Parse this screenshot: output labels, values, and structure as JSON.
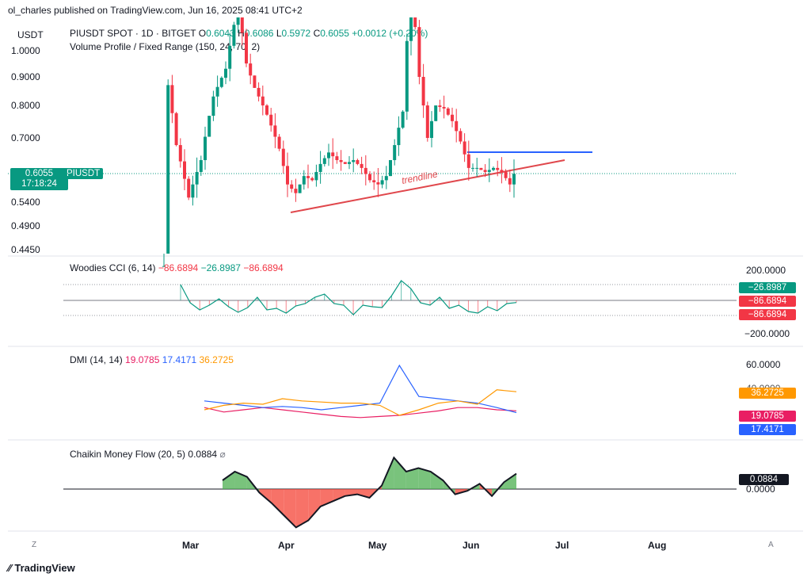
{
  "header": {
    "published": "ol_charles published on TradingView.com, Jun 16, 2025 08:41 UTC+2"
  },
  "footer": {
    "logo_text": "TradingView",
    "left_btn": "Z",
    "right_btn": "A"
  },
  "colors": {
    "up": "#089981",
    "down": "#f23645",
    "blue": "#2962ff",
    "orange": "#ff9800",
    "magenta": "#e91e63",
    "trend": "#e0474c"
  },
  "main_pane": {
    "currency": "USDT",
    "symbol_line": "PIUSDT SPOT · 1D · BITGET",
    "o_label": "O",
    "o_val": "0.6043",
    "h_label": "H",
    "h_val": "0.6086",
    "l_label": "L",
    "l_val": "0.5972",
    "c_label": "C",
    "c_val": "0.6055",
    "change": "+0.0012 (+0.20%)",
    "volume_profile": "Volume Profile / Fixed Range (150, 24, 70, 2)",
    "price_ticks": [
      "1.0000",
      "0.9000",
      "0.8000",
      "0.7000",
      "0.5400",
      "0.4900",
      "0.4450"
    ],
    "price_tag": "0.6055",
    "countdown": "17:18:24",
    "symbol_tag": "PIUSDT",
    "trendline_label": "trendline"
  },
  "cci": {
    "title": "Woodies CCI (6, 14)",
    "v1": "−86.6894",
    "v2": "−26.8987",
    "v3": "−86.6894",
    "ticks": [
      "200.0000",
      "−200.0000"
    ],
    "tags": [
      "−26.8987",
      "−86.6894",
      "−86.6894"
    ]
  },
  "dmi": {
    "title": "DMI (14, 14)",
    "v1": "19.0785",
    "v2": "17.4171",
    "v3": "36.2725",
    "ticks": [
      "60.0000",
      "40.0000"
    ],
    "tags": [
      "36.2725",
      "19.0785",
      "17.4171"
    ]
  },
  "cmf": {
    "title": "Chaikin Money Flow (20, 5)",
    "value": "0.0884",
    "ticks": [
      "0.0000"
    ],
    "tag": "0.0884"
  },
  "time_axis": [
    "Mar",
    "Apr",
    "May",
    "Jun",
    "Jul",
    "Aug"
  ],
  "chart_data": [
    {
      "type": "candlestick",
      "title": "PIUSDT SPOT · 1D · BITGET",
      "ylabel": "USDT",
      "x_range": [
        "2025-02-20",
        "2025-06-16"
      ],
      "ylim": [
        0.445,
        1.05
      ],
      "levels": {
        "resistance": 0.635,
        "last_close": 0.6055
      },
      "trendline": {
        "from": [
          "2025-04-04",
          0.52
        ],
        "to": [
          "2025-06-27",
          0.62
        ]
      },
      "close_path": [
        [
          0,
          0.42
        ],
        [
          1,
          0.87
        ],
        [
          3,
          0.68
        ],
        [
          6,
          0.55
        ],
        [
          9,
          0.64
        ],
        [
          12,
          0.83
        ],
        [
          15,
          0.93
        ],
        [
          18,
          1.2
        ],
        [
          20,
          0.95
        ],
        [
          22,
          0.86
        ],
        [
          25,
          0.77
        ],
        [
          28,
          0.67
        ],
        [
          30,
          0.58
        ],
        [
          32,
          0.56
        ],
        [
          34,
          0.6
        ],
        [
          36,
          0.59
        ],
        [
          38,
          0.63
        ],
        [
          40,
          0.66
        ],
        [
          42,
          0.64
        ],
        [
          44,
          0.63
        ],
        [
          46,
          0.64
        ],
        [
          48,
          0.62
        ],
        [
          50,
          0.59
        ],
        [
          52,
          0.58
        ],
        [
          54,
          0.6
        ],
        [
          56,
          0.68
        ],
        [
          58,
          0.78
        ],
        [
          60,
          1.3
        ],
        [
          62,
          0.9
        ],
        [
          64,
          0.7
        ],
        [
          66,
          0.8
        ],
        [
          68,
          0.79
        ],
        [
          70,
          0.75
        ],
        [
          72,
          0.69
        ],
        [
          74,
          0.62
        ],
        [
          76,
          0.62
        ],
        [
          78,
          0.61
        ],
        [
          80,
          0.62
        ],
        [
          82,
          0.61
        ],
        [
          84,
          0.58
        ],
        [
          85,
          0.6055
        ]
      ]
    },
    {
      "type": "line",
      "title": "Woodies CCI (6, 14)",
      "ylim": [
        -300,
        300
      ],
      "series": [
        {
          "name": "CCI",
          "values": [
            200,
            -30,
            -120,
            -60,
            20,
            -80,
            -150,
            -90,
            40,
            -120,
            -100,
            -160,
            -70,
            -40,
            40,
            80,
            -40,
            -60,
            -180,
            -60,
            -80,
            -90,
            60,
            250,
            150,
            -30,
            -60,
            40,
            -100,
            -60,
            -140,
            -160,
            -80,
            -130,
            -40,
            -26.9
          ]
        }
      ]
    },
    {
      "type": "line",
      "title": "DMI (14, 14)",
      "ylim": [
        0,
        70
      ],
      "series": [
        {
          "name": "+DI",
          "values": [
            22,
            18,
            20,
            22,
            20,
            18,
            16,
            14,
            13,
            14,
            15,
            17,
            19,
            22,
            22,
            20,
            19.08
          ]
        },
        {
          "name": "-DI",
          "values": [
            28,
            26,
            24,
            22,
            23,
            22,
            20,
            22,
            24,
            26,
            60,
            32,
            30,
            28,
            26,
            22,
            17.42
          ]
        },
        {
          "name": "ADX",
          "values": [
            20,
            24,
            26,
            25,
            30,
            28,
            27,
            26,
            26,
            24,
            15,
            20,
            26,
            28,
            25,
            38,
            36.27
          ]
        }
      ]
    },
    {
      "type": "area",
      "title": "Chaikin Money Flow (20, 5)",
      "ylim": [
        -0.3,
        0.3
      ],
      "series": [
        {
          "name": "CMF",
          "values": [
            0.05,
            0.1,
            0.07,
            -0.02,
            -0.08,
            -0.15,
            -0.22,
            -0.18,
            -0.1,
            -0.07,
            -0.04,
            -0.03,
            -0.05,
            0.02,
            0.18,
            0.1,
            0.12,
            0.1,
            0.05,
            -0.03,
            -0.01,
            0.03,
            -0.04,
            0.04,
            0.0884
          ]
        }
      ]
    }
  ]
}
